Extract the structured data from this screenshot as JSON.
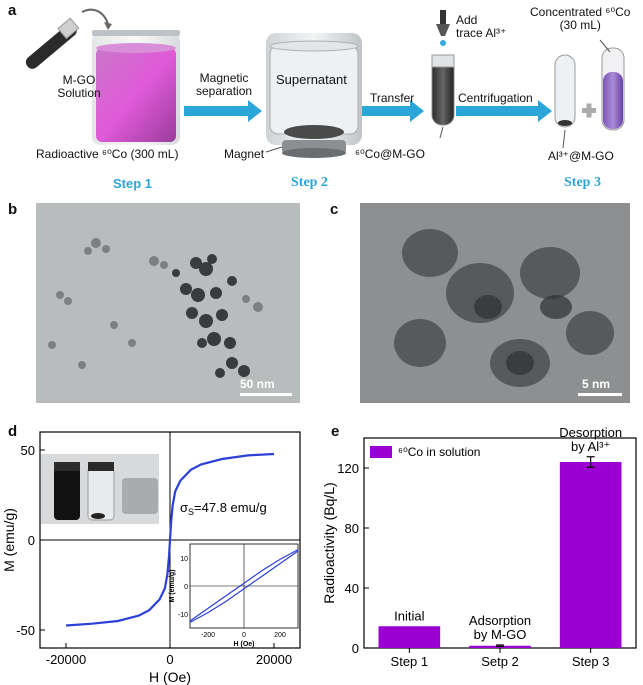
{
  "panels": {
    "a": "a",
    "b": "b",
    "c": "c",
    "d": "d",
    "e": "e"
  },
  "scheme": {
    "mgo_solution": [
      "M-GO",
      "Solution"
    ],
    "radioactive": "Radioactive ⁶⁰Co (300 mL)",
    "magnetic_separation": [
      "Magnetic",
      "separation"
    ],
    "supernatant": "Supernatant",
    "magnet": "Magnet",
    "co_mgo": "⁶⁰Co@M-GO",
    "transfer": "Transfer",
    "add_trace": [
      "Add",
      "trace Al³⁺"
    ],
    "centrifugation": "Centrifugation",
    "concentrated": [
      "Concentrated ⁶⁰Co",
      "(30 mL)"
    ],
    "al_mgo": "Al³⁺@M-GO",
    "step1": "Step 1",
    "step2": "Step 2",
    "step3": "Step 3"
  },
  "tem": {
    "b_scale": "50 nm",
    "c_scale": "5 nm"
  },
  "chart_data": [
    {
      "type": "line",
      "panel": "d",
      "xlabel": "H (Oe)",
      "ylabel": "M (emu/g)",
      "xlim": [
        -25000,
        25000
      ],
      "ylim": [
        -60,
        60
      ],
      "xticks": [
        -20000,
        0,
        20000
      ],
      "yticks": [
        -50,
        0,
        50
      ],
      "annotation": "σS=47.8 emu/g",
      "color": "#2c3fd6",
      "x": [
        -20000,
        -15000,
        -10000,
        -6000,
        -4000,
        -2000,
        -1000,
        -500,
        -200,
        0,
        200,
        500,
        1000,
        2000,
        4000,
        6000,
        10000,
        15000,
        20000
      ],
      "y": [
        -47.5,
        -46.5,
        -45,
        -42,
        -39,
        -33,
        -27,
        -19,
        -9,
        0,
        9,
        19,
        27,
        33,
        39,
        42,
        45,
        47,
        47.8
      ],
      "inset": {
        "xlabel": "H (Oe)",
        "ylabel": "M (emu/g)",
        "xlim": [
          -300,
          300
        ],
        "ylim": [
          -15,
          15
        ],
        "xticks": [
          -200,
          0,
          200
        ],
        "yticks": [
          -10,
          0,
          10
        ],
        "upper_x": [
          -300,
          -200,
          -100,
          0,
          100,
          200,
          300
        ],
        "upper_y": [
          -12.5,
          -8,
          -3.5,
          1,
          5.5,
          9.5,
          13
        ],
        "lower_x": [
          -300,
          -200,
          -100,
          0,
          100,
          200,
          300
        ],
        "lower_y": [
          -13,
          -9.5,
          -5.5,
          -1,
          3.5,
          8,
          12.5
        ]
      }
    },
    {
      "type": "bar",
      "panel": "e",
      "categories": [
        "Step 1",
        "Setp 2",
        "Step 3"
      ],
      "values": [
        14.5,
        1.5,
        124
      ],
      "errors": [
        0,
        0.5,
        3.5
      ],
      "bar_labels": [
        [
          "Initial"
        ],
        [
          "Adsorption",
          "by M-GO"
        ],
        [
          "Desorption",
          "by Al³⁺"
        ]
      ],
      "legend": "⁶⁰Co in solution",
      "ylabel": "Radioactivity (Bq/L)",
      "ylim": [
        0,
        140
      ],
      "yticks": [
        0,
        40,
        80,
        120
      ],
      "color": "#9b00d3"
    }
  ]
}
